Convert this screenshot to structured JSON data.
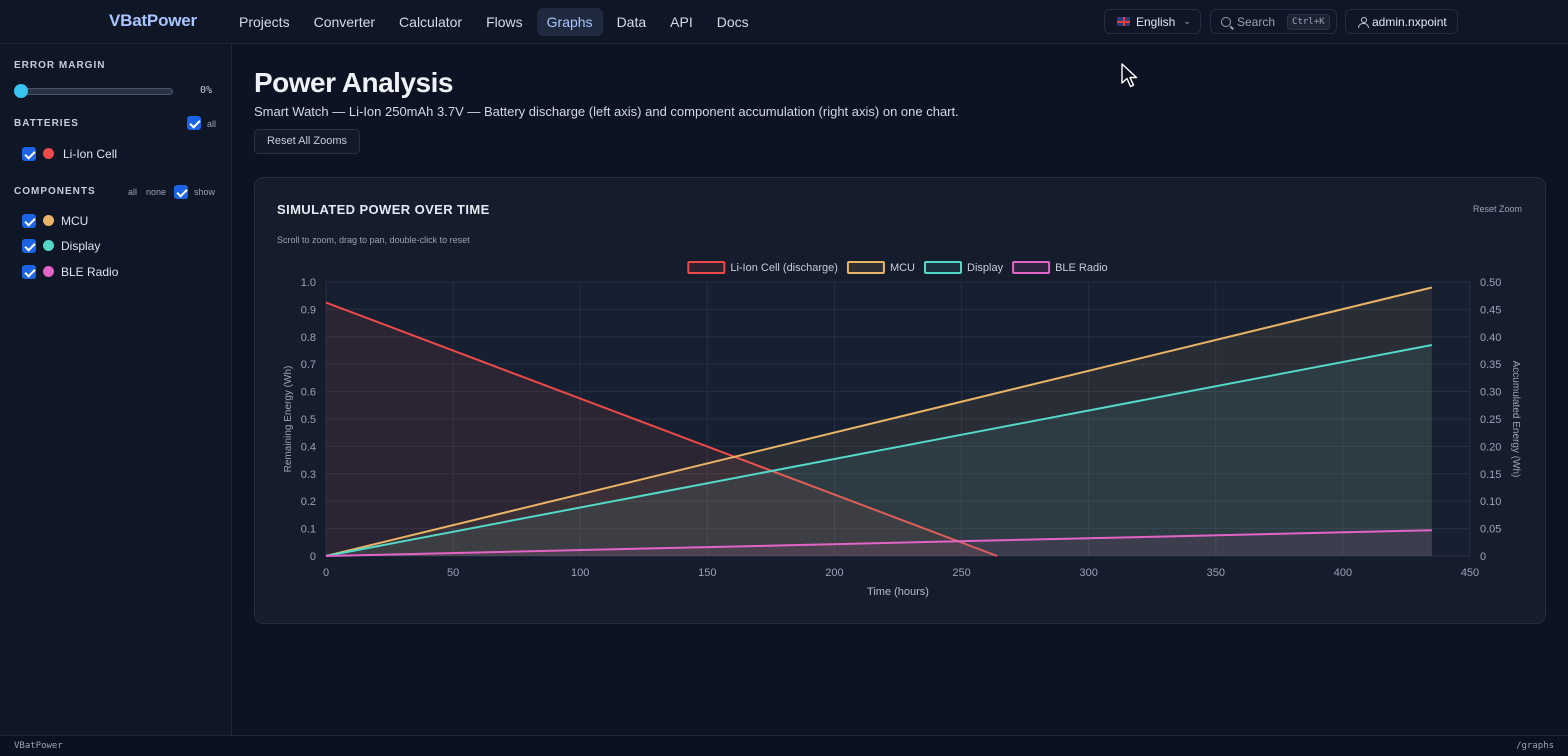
{
  "brand": "VBatPower",
  "nav": [
    {
      "label": "Projects"
    },
    {
      "label": "Converter"
    },
    {
      "label": "Calculator"
    },
    {
      "label": "Flows"
    },
    {
      "label": "Graphs",
      "active": true
    },
    {
      "label": "Data"
    },
    {
      "label": "API"
    },
    {
      "label": "Docs"
    }
  ],
  "header": {
    "language": "English",
    "search_placeholder": "Search",
    "search_shortcut": "Ctrl+K",
    "user": "admin.nxpoint"
  },
  "sidebar": {
    "error_margin": {
      "title": "ERROR MARGIN",
      "value": 0,
      "value_label": "0%"
    },
    "batteries": {
      "title": "BATTERIES",
      "all_label": "all",
      "items": [
        {
          "label": "Li-Ion Cell",
          "color": "#ef4a4a",
          "checked": true
        }
      ]
    },
    "components": {
      "title": "COMPONENTS",
      "all_label": "all",
      "none_label": "none",
      "show_label": "show",
      "items": [
        {
          "label": "MCU",
          "color": "#e9b465",
          "checked": true
        },
        {
          "label": "Display",
          "color": "#54d8c8",
          "checked": true
        },
        {
          "label": "BLE Radio",
          "color": "#e264c6",
          "checked": true
        }
      ]
    }
  },
  "page": {
    "title": "Power Analysis",
    "subtitle": "Smart Watch — Li-Ion 250mAh 3.7V — Battery discharge (left axis) and component accumulation (right axis) on one chart.",
    "reset_all_label": "Reset All Zooms"
  },
  "card": {
    "title": "SIMULATED POWER OVER TIME",
    "hint": "Scroll to zoom, drag to pan, double-click to reset",
    "reset_label": "Reset Zoom"
  },
  "chart_data": {
    "type": "line",
    "title": "SIMULATED POWER OVER TIME",
    "xlabel": "Time (hours)",
    "ylabel": "Remaining Energy (Wh)",
    "y2label": "Accumulated Energy (Wh)",
    "xlim": [
      0,
      450
    ],
    "ylim": [
      0,
      1.0
    ],
    "y2lim": [
      0,
      0.5
    ],
    "x_ticks": [
      0,
      50,
      100,
      150,
      200,
      250,
      300,
      350,
      400,
      450
    ],
    "y_ticks": [
      "0",
      "0.1",
      "0.2",
      "0.3",
      "0.4",
      "0.5",
      "0.6",
      "0.7",
      "0.8",
      "0.9",
      "1.0"
    ],
    "y2_ticks": [
      "0",
      "0.05",
      "0.10",
      "0.15",
      "0.20",
      "0.25",
      "0.30",
      "0.35",
      "0.40",
      "0.45",
      "0.50"
    ],
    "grid": true,
    "legend": "top-center",
    "series": [
      {
        "name": "Li-Ion Cell (discharge)",
        "axis": "left",
        "color": "#ef4a4a",
        "x": [
          0,
          264
        ],
        "values": [
          0.925,
          0
        ]
      },
      {
        "name": "MCU",
        "axis": "right",
        "color": "#e9b465",
        "x": [
          0,
          435
        ],
        "values": [
          0,
          0.49
        ]
      },
      {
        "name": "Display",
        "axis": "right",
        "color": "#54d8c8",
        "x": [
          0,
          435
        ],
        "values": [
          0,
          0.385
        ]
      },
      {
        "name": "BLE Radio",
        "axis": "right",
        "color": "#e264c6",
        "x": [
          0,
          435
        ],
        "values": [
          0,
          0.047
        ]
      }
    ]
  },
  "footer": {
    "left": "VBatPower",
    "right": "/graphs"
  }
}
